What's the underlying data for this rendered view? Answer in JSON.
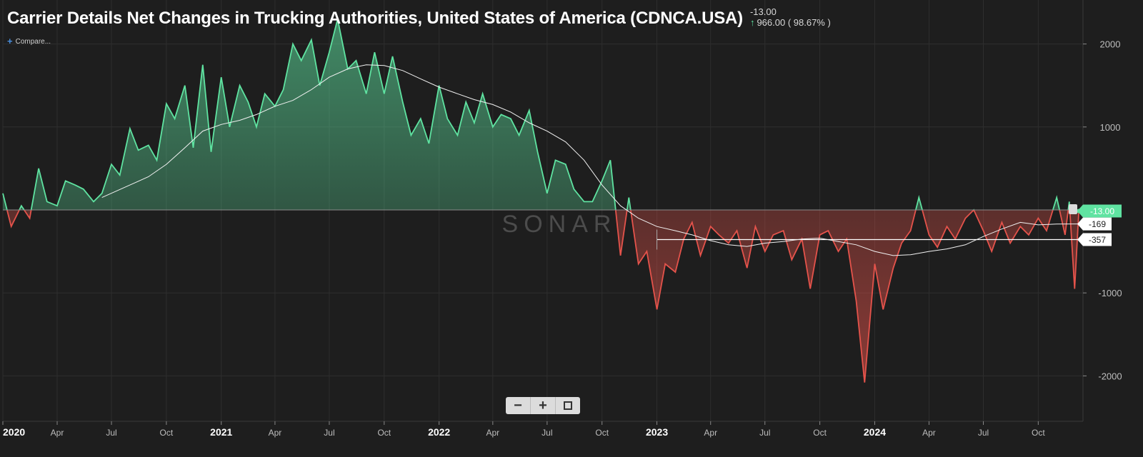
{
  "header": {
    "title": "Carrier Details Net Changes in Trucking Authorities, United States of America (CDNCA.USA)",
    "last_value": "-13.00",
    "change_text": "966.00 ( 98.67% )",
    "change_icon": "arrow-up-icon",
    "compare_label": "Compare..."
  },
  "zoom_controls": {
    "zoom_out_label": "−",
    "zoom_in_label": "+",
    "fit_icon": "fullscreen-icon"
  },
  "watermark": "SONAR",
  "colors": {
    "background": "#1e1e1e",
    "positive": "#5fe3a1",
    "negative": "#e5534b",
    "average_line": "#f2f2f2",
    "grid": "#2e2e2e",
    "zero_line": "#8a8a8a"
  },
  "chart_data": {
    "type": "area",
    "title": "Carrier Details Net Changes in Trucking Authorities, United States of America (CDNCA.USA)",
    "x_range": [
      "2020-01",
      "2024-12"
    ],
    "ylim": [
      -2500,
      2500
    ],
    "y_ticks": [
      2000,
      1000,
      -1000,
      -2000
    ],
    "x_ticks": [
      {
        "date": "2020-01",
        "label": "2020",
        "major": true
      },
      {
        "date": "2020-04",
        "label": "Apr"
      },
      {
        "date": "2020-07",
        "label": "Jul"
      },
      {
        "date": "2020-10",
        "label": "Oct"
      },
      {
        "date": "2021-01",
        "label": "2021",
        "major": true
      },
      {
        "date": "2021-04",
        "label": "Apr"
      },
      {
        "date": "2021-07",
        "label": "Jul"
      },
      {
        "date": "2021-10",
        "label": "Oct"
      },
      {
        "date": "2022-01",
        "label": "2022",
        "major": true
      },
      {
        "date": "2022-04",
        "label": "Apr"
      },
      {
        "date": "2022-07",
        "label": "Jul"
      },
      {
        "date": "2022-10",
        "label": "Oct"
      },
      {
        "date": "2023-01",
        "label": "2023",
        "major": true
      },
      {
        "date": "2023-04",
        "label": "Apr"
      },
      {
        "date": "2023-07",
        "label": "Jul"
      },
      {
        "date": "2023-10",
        "label": "Oct"
      },
      {
        "date": "2024-01",
        "label": "2024",
        "major": true
      },
      {
        "date": "2024-04",
        "label": "Apr"
      },
      {
        "date": "2024-07",
        "label": "Jul"
      },
      {
        "date": "2024-10",
        "label": "Oct"
      }
    ],
    "grid": true,
    "series": [
      {
        "style": "area-positive-negative",
        "points": [
          [
            "2020-01-01",
            200
          ],
          [
            "2020-01-15",
            -200
          ],
          [
            "2020-02-01",
            50
          ],
          [
            "2020-02-15",
            -100
          ],
          [
            "2020-03-01",
            500
          ],
          [
            "2020-03-15",
            100
          ],
          [
            "2020-04-01",
            50
          ],
          [
            "2020-04-15",
            350
          ],
          [
            "2020-05-01",
            300
          ],
          [
            "2020-05-15",
            250
          ],
          [
            "2020-06-01",
            100
          ],
          [
            "2020-06-15",
            200
          ],
          [
            "2020-07-01",
            550
          ],
          [
            "2020-07-15",
            420
          ],
          [
            "2020-08-01",
            980
          ],
          [
            "2020-08-15",
            720
          ],
          [
            "2020-09-01",
            780
          ],
          [
            "2020-09-15",
            600
          ],
          [
            "2020-10-01",
            1280
          ],
          [
            "2020-10-15",
            1100
          ],
          [
            "2020-11-01",
            1500
          ],
          [
            "2020-11-15",
            750
          ],
          [
            "2020-12-01",
            1750
          ],
          [
            "2020-12-15",
            700
          ],
          [
            "2021-01-01",
            1600
          ],
          [
            "2021-01-15",
            1000
          ],
          [
            "2021-02-01",
            1500
          ],
          [
            "2021-02-15",
            1300
          ],
          [
            "2021-03-01",
            1000
          ],
          [
            "2021-03-15",
            1400
          ],
          [
            "2021-04-01",
            1250
          ],
          [
            "2021-04-15",
            1450
          ],
          [
            "2021-05-01",
            2000
          ],
          [
            "2021-05-15",
            1800
          ],
          [
            "2021-06-01",
            2050
          ],
          [
            "2021-06-15",
            1500
          ],
          [
            "2021-07-01",
            1900
          ],
          [
            "2021-07-15",
            2300
          ],
          [
            "2021-08-01",
            1700
          ],
          [
            "2021-08-15",
            1800
          ],
          [
            "2021-09-01",
            1400
          ],
          [
            "2021-09-15",
            1900
          ],
          [
            "2021-10-01",
            1400
          ],
          [
            "2021-10-15",
            1850
          ],
          [
            "2021-11-01",
            1300
          ],
          [
            "2021-11-15",
            900
          ],
          [
            "2021-12-01",
            1100
          ],
          [
            "2021-12-15",
            800
          ],
          [
            "2022-01-01",
            1500
          ],
          [
            "2022-01-15",
            1100
          ],
          [
            "2022-02-01",
            900
          ],
          [
            "2022-02-15",
            1300
          ],
          [
            "2022-03-01",
            1050
          ],
          [
            "2022-03-15",
            1400
          ],
          [
            "2022-04-01",
            1000
          ],
          [
            "2022-04-15",
            1150
          ],
          [
            "2022-05-01",
            1100
          ],
          [
            "2022-05-15",
            900
          ],
          [
            "2022-06-01",
            1200
          ],
          [
            "2022-06-15",
            700
          ],
          [
            "2022-07-01",
            200
          ],
          [
            "2022-07-15",
            600
          ],
          [
            "2022-08-01",
            550
          ],
          [
            "2022-08-15",
            250
          ],
          [
            "2022-09-01",
            100
          ],
          [
            "2022-09-15",
            100
          ],
          [
            "2022-10-01",
            350
          ],
          [
            "2022-10-15",
            600
          ],
          [
            "2022-11-01",
            -550
          ],
          [
            "2022-11-15",
            150
          ],
          [
            "2022-12-01",
            -650
          ],
          [
            "2022-12-15",
            -500
          ],
          [
            "2023-01-01",
            -1200
          ],
          [
            "2023-01-15",
            -650
          ],
          [
            "2023-02-01",
            -750
          ],
          [
            "2023-02-15",
            -350
          ],
          [
            "2023-03-01",
            -150
          ],
          [
            "2023-03-15",
            -550
          ],
          [
            "2023-04-01",
            -200
          ],
          [
            "2023-04-15",
            -300
          ],
          [
            "2023-05-01",
            -400
          ],
          [
            "2023-05-15",
            -250
          ],
          [
            "2023-06-01",
            -700
          ],
          [
            "2023-06-15",
            -200
          ],
          [
            "2023-07-01",
            -500
          ],
          [
            "2023-07-15",
            -300
          ],
          [
            "2023-08-01",
            -250
          ],
          [
            "2023-08-15",
            -600
          ],
          [
            "2023-09-01",
            -350
          ],
          [
            "2023-09-15",
            -950
          ],
          [
            "2023-10-01",
            -300
          ],
          [
            "2023-10-15",
            -250
          ],
          [
            "2023-11-01",
            -500
          ],
          [
            "2023-11-15",
            -350
          ],
          [
            "2023-12-01",
            -1100
          ],
          [
            "2023-12-15",
            -2080
          ],
          [
            "2024-01-01",
            -650
          ],
          [
            "2024-01-15",
            -1200
          ],
          [
            "2024-02-01",
            -700
          ],
          [
            "2024-02-15",
            -400
          ],
          [
            "2024-03-01",
            -250
          ],
          [
            "2024-03-15",
            150
          ],
          [
            "2024-04-01",
            -300
          ],
          [
            "2024-04-15",
            -450
          ],
          [
            "2024-05-01",
            -200
          ],
          [
            "2024-05-15",
            -350
          ],
          [
            "2024-06-01",
            -100
          ],
          [
            "2024-06-15",
            0
          ],
          [
            "2024-07-01",
            -250
          ],
          [
            "2024-07-15",
            -500
          ],
          [
            "2024-08-01",
            -150
          ],
          [
            "2024-08-15",
            -400
          ],
          [
            "2024-09-01",
            -200
          ],
          [
            "2024-09-15",
            -300
          ],
          [
            "2024-10-01",
            -100
          ],
          [
            "2024-10-15",
            -250
          ],
          [
            "2024-11-01",
            150
          ],
          [
            "2024-11-15",
            -300
          ],
          [
            "2024-11-22",
            100
          ],
          [
            "2024-12-01",
            -950
          ],
          [
            "2024-12-08",
            -13
          ]
        ]
      },
      {
        "style": "moving-average",
        "points": [
          [
            "2020-06-15",
            150
          ],
          [
            "2020-08-01",
            300
          ],
          [
            "2020-09-01",
            400
          ],
          [
            "2020-10-01",
            550
          ],
          [
            "2020-11-01",
            750
          ],
          [
            "2020-12-01",
            950
          ],
          [
            "2021-01-01",
            1030
          ],
          [
            "2021-02-01",
            1080
          ],
          [
            "2021-03-01",
            1150
          ],
          [
            "2021-04-01",
            1250
          ],
          [
            "2021-05-01",
            1320
          ],
          [
            "2021-06-01",
            1450
          ],
          [
            "2021-07-01",
            1600
          ],
          [
            "2021-08-01",
            1700
          ],
          [
            "2021-09-01",
            1750
          ],
          [
            "2021-10-01",
            1740
          ],
          [
            "2021-11-01",
            1680
          ],
          [
            "2021-12-01",
            1580
          ],
          [
            "2022-01-01",
            1480
          ],
          [
            "2022-02-01",
            1400
          ],
          [
            "2022-03-01",
            1330
          ],
          [
            "2022-04-01",
            1270
          ],
          [
            "2022-05-01",
            1180
          ],
          [
            "2022-06-01",
            1050
          ],
          [
            "2022-07-01",
            950
          ],
          [
            "2022-08-01",
            820
          ],
          [
            "2022-09-01",
            600
          ],
          [
            "2022-10-01",
            300
          ],
          [
            "2022-11-01",
            50
          ],
          [
            "2022-12-01",
            -100
          ],
          [
            "2023-01-01",
            -200
          ],
          [
            "2023-02-01",
            -250
          ],
          [
            "2023-03-01",
            -300
          ],
          [
            "2023-04-01",
            -370
          ],
          [
            "2023-05-01",
            -420
          ],
          [
            "2023-06-01",
            -440
          ],
          [
            "2023-07-01",
            -400
          ],
          [
            "2023-08-01",
            -380
          ],
          [
            "2023-09-01",
            -350
          ],
          [
            "2023-10-01",
            -340
          ],
          [
            "2023-11-01",
            -380
          ],
          [
            "2023-12-01",
            -420
          ],
          [
            "2024-01-01",
            -500
          ],
          [
            "2024-02-01",
            -550
          ],
          [
            "2024-03-01",
            -540
          ],
          [
            "2024-04-01",
            -500
          ],
          [
            "2024-05-01",
            -470
          ],
          [
            "2024-06-01",
            -420
          ],
          [
            "2024-07-01",
            -320
          ],
          [
            "2024-08-01",
            -230
          ],
          [
            "2024-09-01",
            -150
          ],
          [
            "2024-10-01",
            -180
          ],
          [
            "2024-11-01",
            -170
          ],
          [
            "2024-12-08",
            -169
          ]
        ]
      }
    ],
    "reference_line": {
      "from": "2023-01-01",
      "value": -357
    },
    "labels": [
      {
        "value": -13,
        "text": "-13.00",
        "color": "#5fe3a1"
      },
      {
        "value": -169,
        "text": "-169"
      },
      {
        "value": -357,
        "text": "-357"
      }
    ]
  }
}
